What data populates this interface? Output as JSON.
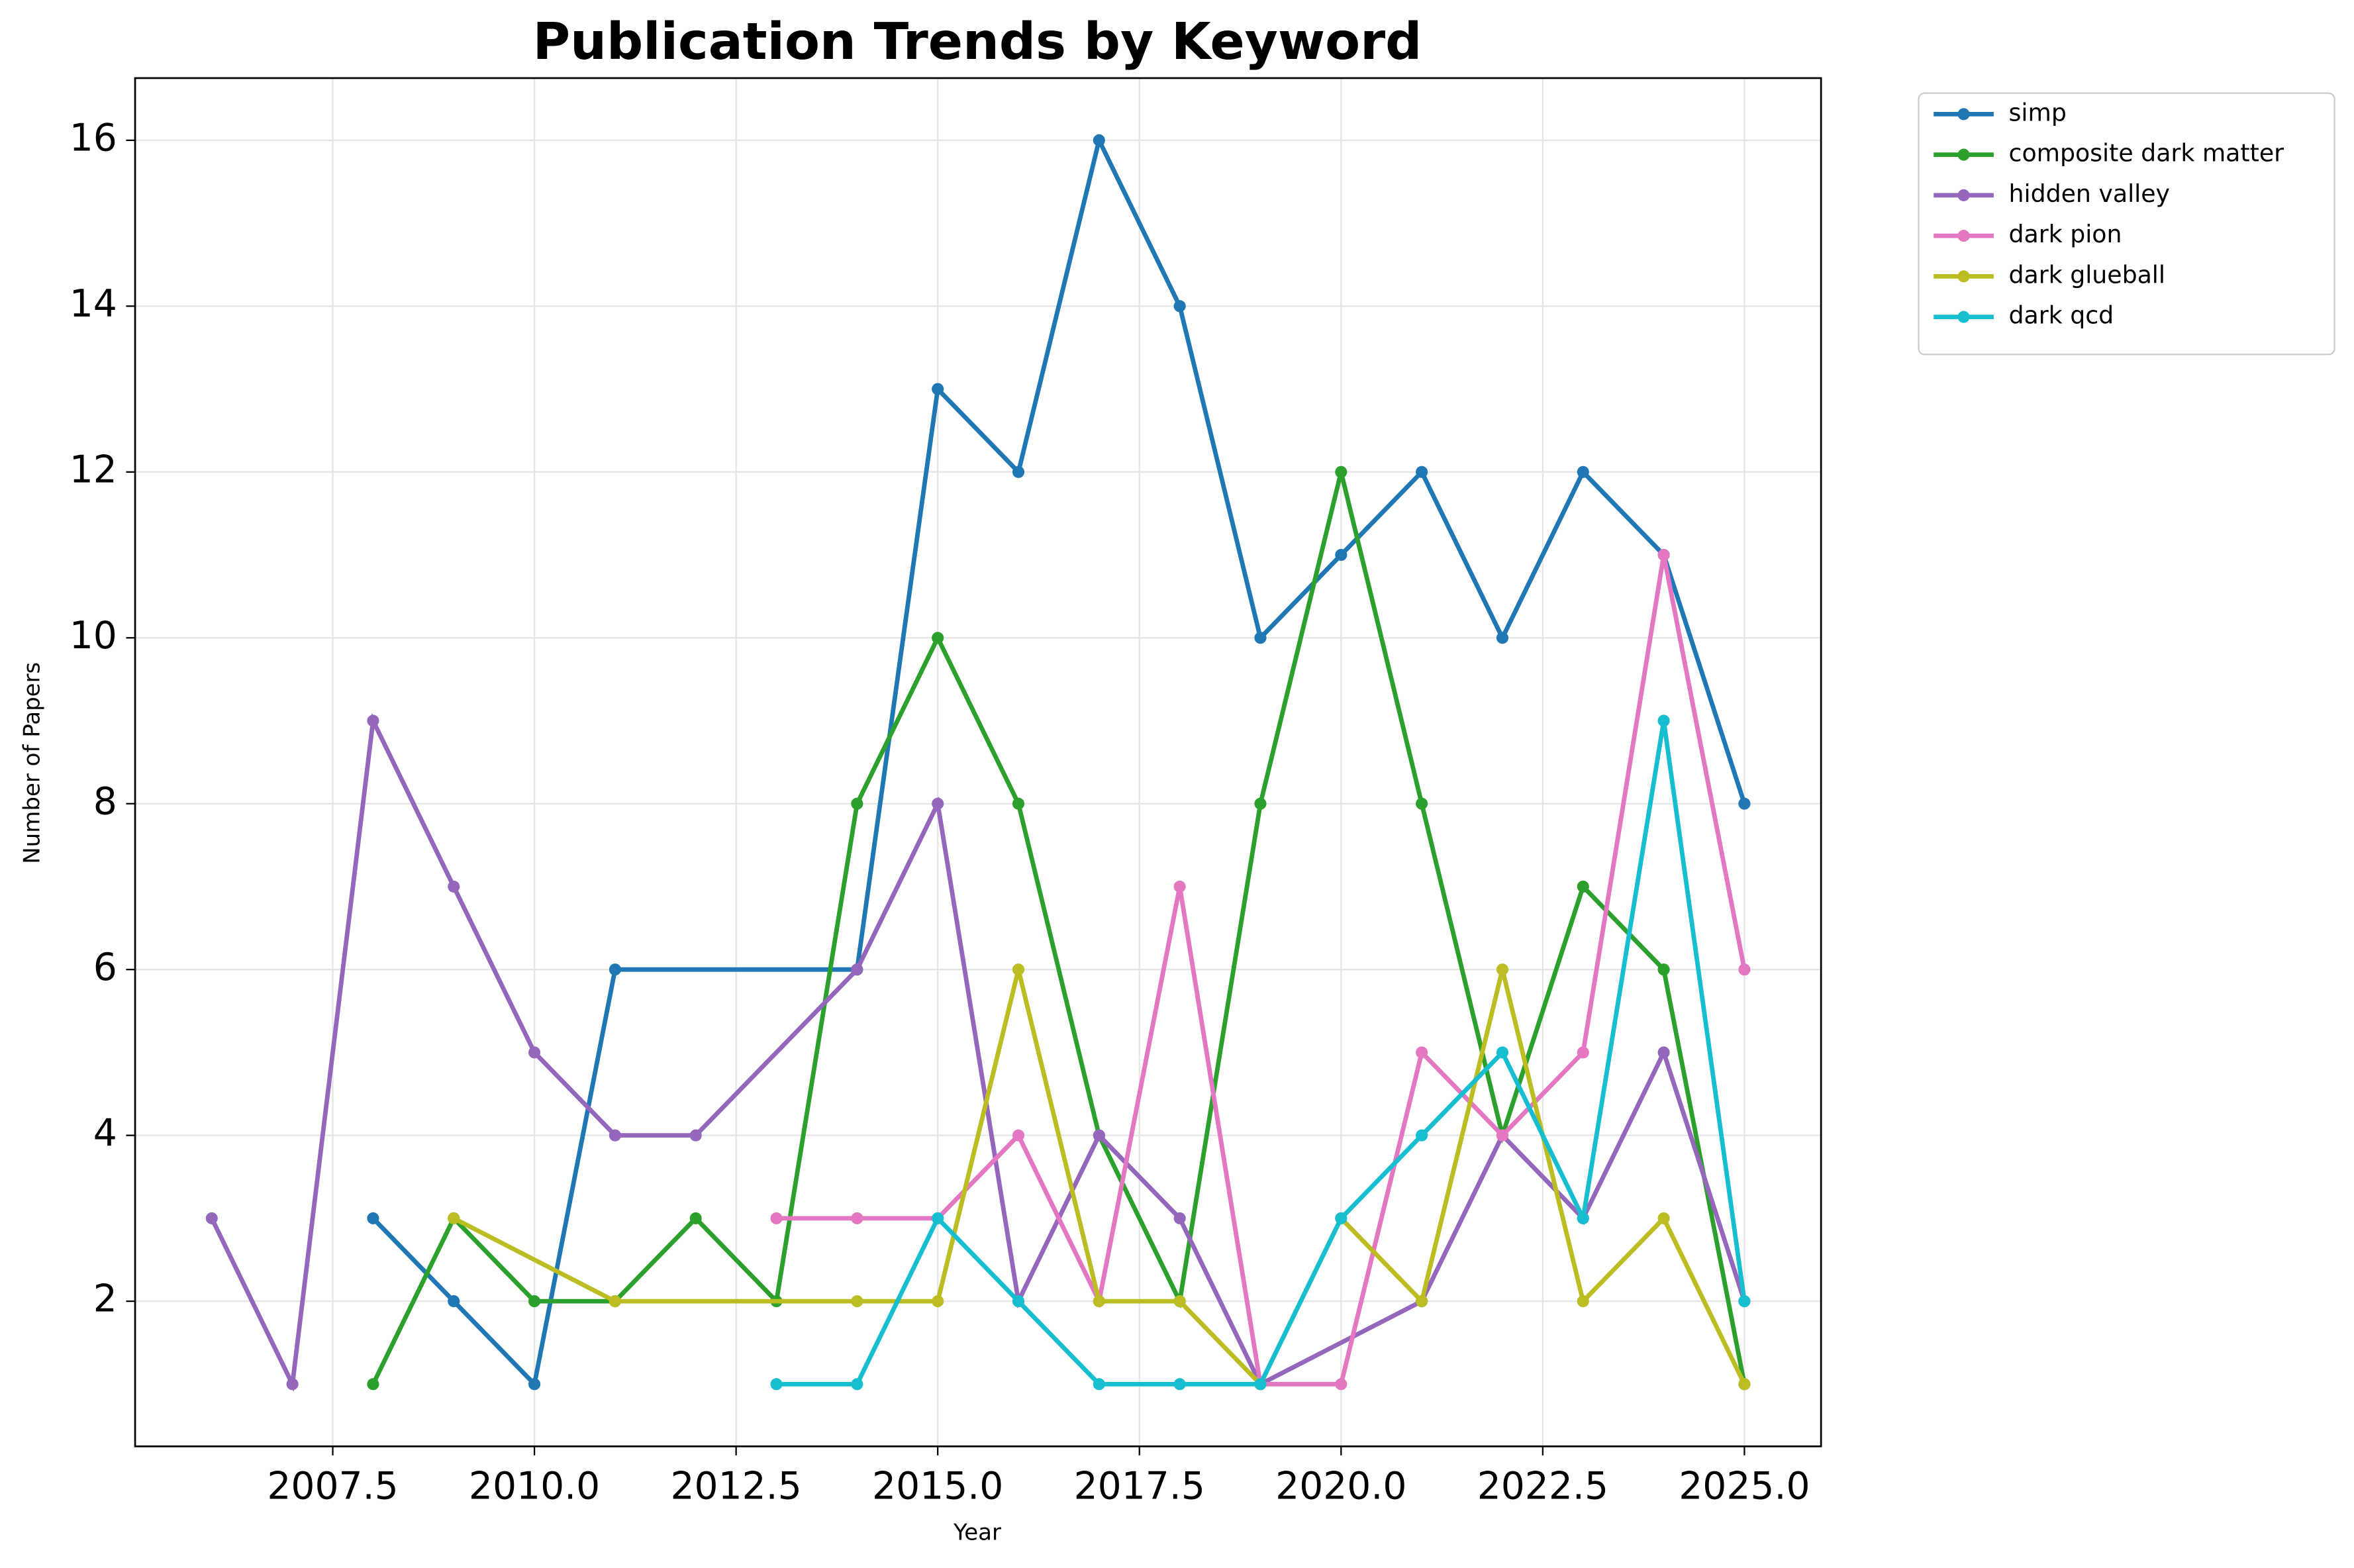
{
  "chart_data": {
    "type": "line",
    "title": "Publication Trends by Keyword",
    "x_label": "Year",
    "y_label": "Number of Papers",
    "xlim": [
      2005.05,
      2025.95
    ],
    "ylim": [
      0.25,
      16.75
    ],
    "xticks": [
      2007.5,
      {
        "value": 2010,
        "label": "2010.0"
      },
      2012.5,
      {
        "value": 2015,
        "label": "2015.0"
      },
      2017.5,
      {
        "value": 2020,
        "label": "2020.0"
      },
      2022.5,
      {
        "value": 2025,
        "label": "2025.0"
      }
    ],
    "yticks": [
      2,
      4,
      6,
      8,
      10,
      12,
      14,
      16
    ],
    "grid": true,
    "legend": "outside upper right",
    "series": [
      {
        "name": "simp",
        "color": "#1f77b4",
        "x": [
          2008,
          2009,
          2010,
          2011,
          2014,
          2015,
          2016,
          2017,
          2018,
          2019,
          2020,
          2021,
          2022,
          2023,
          2024,
          2025
        ],
        "values": [
          3,
          2,
          1,
          6,
          6,
          13,
          12,
          16,
          14,
          10,
          11,
          12,
          10,
          12,
          11,
          8
        ]
      },
      {
        "name": "composite dark matter",
        "color": "#2ca02c",
        "x": [
          2008,
          2009,
          2010,
          2011,
          2012,
          2013,
          2014,
          2015,
          2016,
          2017,
          2018,
          2019,
          2020,
          2021,
          2022,
          2023,
          2024,
          2025
        ],
        "values": [
          1,
          3,
          2,
          2,
          3,
          2,
          8,
          10,
          8,
          4,
          2,
          8,
          12,
          8,
          4,
          7,
          6,
          1
        ]
      },
      {
        "name": "hidden valley",
        "color": "#9467bd",
        "x": [
          2006,
          2007,
          2008,
          2009,
          2010,
          2011,
          2012,
          2014,
          2015,
          2016,
          2017,
          2018,
          2019,
          2021,
          2022,
          2023,
          2024,
          2025
        ],
        "values": [
          3,
          1,
          9,
          7,
          5,
          4,
          4,
          6,
          8,
          2,
          4,
          3,
          1,
          2,
          4,
          3,
          5,
          2
        ]
      },
      {
        "name": "dark pion",
        "color": "#e377c2",
        "x": [
          2013,
          2014,
          2015,
          2016,
          2017,
          2018,
          2019,
          2020,
          2021,
          2022,
          2023,
          2024,
          2025
        ],
        "values": [
          3,
          3,
          3,
          4,
          2,
          7,
          1,
          1,
          5,
          4,
          5,
          11,
          6
        ]
      },
      {
        "name": "dark glueball",
        "color": "#bcbd22",
        "x": [
          2009,
          2011,
          2014,
          2015,
          2016,
          2017,
          2018,
          2019,
          2020,
          2021,
          2022,
          2023,
          2024,
          2025
        ],
        "values": [
          3,
          2,
          2,
          2,
          6,
          2,
          2,
          1,
          3,
          2,
          6,
          2,
          3,
          1
        ]
      },
      {
        "name": "dark qcd",
        "color": "#17becf",
        "x": [
          2013,
          2014,
          2015,
          2016,
          2017,
          2018,
          2019,
          2020,
          2021,
          2022,
          2023,
          2024,
          2025
        ],
        "values": [
          1,
          1,
          3,
          2,
          1,
          1,
          1,
          3,
          4,
          5,
          3,
          9,
          2
        ]
      }
    ]
  }
}
